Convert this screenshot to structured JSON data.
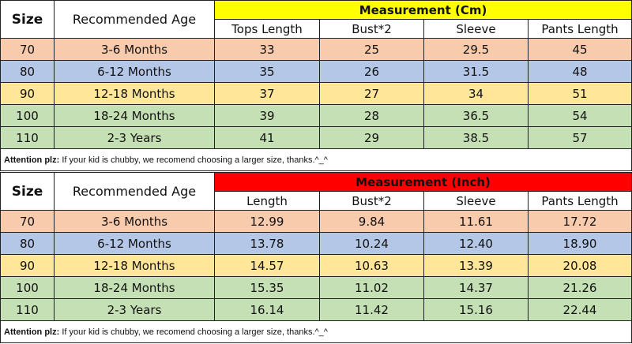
{
  "colors": {
    "cm_header_bg": "#ffff00",
    "inch_header_bg": "#ff0000",
    "row_backgrounds": [
      "#f8cbad",
      "#b4c7e7",
      "#ffe699",
      "#c5e0b4",
      "#c5e0b4"
    ]
  },
  "headers": {
    "size": "Size",
    "age": "Recommended Age"
  },
  "cm_table": {
    "title": "Measurement (Cm)",
    "columns": [
      "Tops Length",
      "Bust*2",
      "Sleeve",
      "Pants Length"
    ],
    "rows": [
      {
        "size": "70",
        "age": "3-6 Months",
        "values": [
          "33",
          "25",
          "29.5",
          "45"
        ]
      },
      {
        "size": "80",
        "age": "6-12 Months",
        "values": [
          "35",
          "26",
          "31.5",
          "48"
        ]
      },
      {
        "size": "90",
        "age": "12-18 Months",
        "values": [
          "37",
          "27",
          "34",
          "51"
        ]
      },
      {
        "size": "100",
        "age": "18-24 Months",
        "values": [
          "39",
          "28",
          "36.5",
          "54"
        ]
      },
      {
        "size": "110",
        "age": "2-3 Years",
        "values": [
          "41",
          "29",
          "38.5",
          "57"
        ]
      }
    ],
    "note_label": "Attention plz:",
    "note_text": " If your kid is chubby, we recomend choosing a larger size, thanks.^_^"
  },
  "inch_table": {
    "title": "Measurement (Inch)",
    "columns": [
      "Length",
      "Bust*2",
      "Sleeve",
      "Pants Length"
    ],
    "rows": [
      {
        "size": "70",
        "age": "3-6 Months",
        "values": [
          "12.99",
          "9.84",
          "11.61",
          "17.72"
        ]
      },
      {
        "size": "80",
        "age": "6-12 Months",
        "values": [
          "13.78",
          "10.24",
          "12.40",
          "18.90"
        ]
      },
      {
        "size": "90",
        "age": "12-18 Months",
        "values": [
          "14.57",
          "10.63",
          "13.39",
          "20.08"
        ]
      },
      {
        "size": "100",
        "age": "18-24 Months",
        "values": [
          "15.35",
          "11.02",
          "14.37",
          "21.26"
        ]
      },
      {
        "size": "110",
        "age": "2-3 Years",
        "values": [
          "16.14",
          "11.42",
          "15.16",
          "22.44"
        ]
      }
    ],
    "note_label": "Attention plz:",
    "note_text": " If your kid is chubby, we recomend choosing a larger size, thanks.^_^"
  }
}
